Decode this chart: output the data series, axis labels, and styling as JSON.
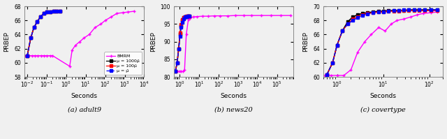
{
  "subplots": [
    {
      "label": "(a) adult9",
      "ylabel": "PRBEP",
      "xlabel": "Seconds",
      "xlim": [
        0.007,
        10000
      ],
      "ylim": [
        58,
        68
      ],
      "yticks": [
        58,
        60,
        62,
        64,
        66,
        68
      ],
      "legend_loc": "lower right",
      "series": [
        {
          "name": "BMRM",
          "color": "#ff00ff",
          "linestyle": "-",
          "marker": "+",
          "markersize": 3.5,
          "linewidth": 1.0,
          "x": [
            0.008,
            0.012,
            0.018,
            0.025,
            0.035,
            0.05,
            0.07,
            0.1,
            0.15,
            0.2,
            1.5,
            2.0,
            3.0,
            5.0,
            8.0,
            15.0,
            30.0,
            60.0,
            100.0,
            200.0,
            400.0,
            800.0,
            1500.0,
            3000.0
          ],
          "y": [
            61.0,
            61.0,
            61.0,
            61.0,
            61.0,
            61.0,
            61.0,
            61.0,
            61.0,
            61.0,
            59.5,
            61.8,
            62.5,
            63.0,
            63.5,
            64.0,
            65.0,
            65.5,
            66.0,
            66.5,
            67.0,
            67.1,
            67.2,
            67.3
          ]
        },
        {
          "name": "μ = 1000μ̂",
          "color": "#000000",
          "linestyle": "-",
          "marker": "s",
          "markersize": 2.5,
          "linewidth": 1.2,
          "x": [
            0.01,
            0.015,
            0.022,
            0.032,
            0.047,
            0.07,
            0.1,
            0.15,
            0.22,
            0.32,
            0.47
          ],
          "y": [
            61.0,
            63.5,
            65.0,
            65.8,
            66.5,
            67.0,
            67.2,
            67.2,
            67.3,
            67.3,
            67.3
          ]
        },
        {
          "name": "μ = 100μ̂",
          "color": "#ff0000",
          "linestyle": "-",
          "marker": "s",
          "markersize": 2.5,
          "linewidth": 1.0,
          "x": [
            0.01,
            0.015,
            0.022,
            0.032,
            0.047,
            0.07,
            0.1,
            0.15,
            0.22,
            0.32,
            0.47
          ],
          "y": [
            61.0,
            63.5,
            65.0,
            65.8,
            66.5,
            67.0,
            67.2,
            67.2,
            67.3,
            67.3,
            67.3
          ]
        },
        {
          "name": "μ = μ̂",
          "color": "#0000ff",
          "linestyle": "--",
          "marker": "s",
          "markersize": 2.5,
          "linewidth": 1.0,
          "x": [
            0.01,
            0.015,
            0.022,
            0.032,
            0.047,
            0.07,
            0.1,
            0.15,
            0.22,
            0.32,
            0.47
          ],
          "y": [
            61.0,
            63.5,
            65.0,
            65.8,
            66.5,
            67.0,
            67.2,
            67.2,
            67.3,
            67.3,
            67.3
          ]
        }
      ]
    },
    {
      "label": "(b) news20",
      "ylabel": "PRBEP",
      "xlabel": "Seconds",
      "xlim": [
        0.5,
        700000
      ],
      "ylim": [
        80,
        100
      ],
      "yticks": [
        80,
        85,
        90,
        95,
        100
      ],
      "legend_loc": null,
      "series": [
        {
          "name": "BMRM",
          "color": "#ff00ff",
          "linestyle": "-",
          "marker": "+",
          "markersize": 3.5,
          "linewidth": 1.0,
          "x": [
            0.6,
            0.8,
            1.0,
            1.2,
            1.5,
            1.8,
            2.2,
            2.8,
            3.5,
            5.0,
            8.0,
            15.0,
            30.0,
            60.0,
            120.0,
            300.0,
            700.0,
            2000.0,
            5000.0,
            15000.0,
            50000.0,
            150000.0,
            500000.0
          ],
          "y": [
            81.5,
            81.5,
            81.5,
            81.5,
            81.5,
            82.0,
            92.0,
            96.2,
            96.7,
            97.0,
            97.1,
            97.2,
            97.2,
            97.3,
            97.3,
            97.3,
            97.4,
            97.4,
            97.4,
            97.4,
            97.4,
            97.4,
            97.4
          ]
        },
        {
          "name": "μ = 1000μ̂",
          "color": "#000000",
          "linestyle": "-",
          "marker": "s",
          "markersize": 2.5,
          "linewidth": 1.2,
          "x": [
            0.6,
            0.75,
            0.9,
            1.05,
            1.2,
            1.4,
            1.6,
            1.9,
            2.2,
            2.6,
            3.1
          ],
          "y": [
            81.5,
            84.0,
            88.0,
            92.0,
            94.5,
            96.0,
            96.8,
            97.0,
            97.1,
            97.2,
            97.3
          ]
        },
        {
          "name": "μ = 100μ̂",
          "color": "#ff0000",
          "linestyle": "-",
          "marker": "s",
          "markersize": 2.5,
          "linewidth": 1.0,
          "x": [
            0.6,
            0.75,
            0.9,
            1.05,
            1.2,
            1.4,
            1.6,
            1.9,
            2.2,
            2.6,
            3.1
          ],
          "y": [
            81.5,
            84.0,
            88.0,
            92.5,
            94.8,
            96.2,
            96.9,
            97.1,
            97.2,
            97.3,
            97.3
          ]
        },
        {
          "name": "μ = μ̂",
          "color": "#0000ff",
          "linestyle": "--",
          "marker": "s",
          "markersize": 2.5,
          "linewidth": 1.0,
          "x": [
            0.6,
            0.75,
            0.9,
            1.05,
            1.2,
            1.4,
            1.6,
            1.9,
            2.2,
            2.6,
            3.1
          ],
          "y": [
            81.5,
            84.0,
            88.0,
            91.5,
            94.0,
            95.5,
            96.5,
            97.0,
            97.1,
            97.2,
            97.3
          ]
        }
      ]
    },
    {
      "label": "(c) covertype",
      "ylabel": "PRBEP",
      "xlabel": "Seconds",
      "xlim": [
        0.5,
        200
      ],
      "ylim": [
        60,
        70
      ],
      "yticks": [
        60,
        62,
        64,
        66,
        68,
        70
      ],
      "legend_loc": null,
      "series": [
        {
          "name": "BMRM",
          "color": "#ff00ff",
          "linestyle": "-",
          "marker": "+",
          "markersize": 3.5,
          "linewidth": 1.0,
          "x": [
            0.55,
            0.75,
            1.0,
            1.4,
            2.0,
            2.8,
            4.0,
            5.5,
            8.0,
            11.0,
            15.0,
            20.0,
            28.0,
            40.0,
            55.0,
            75.0,
            110.0,
            150.0
          ],
          "y": [
            60.2,
            60.2,
            60.2,
            60.2,
            61.0,
            63.5,
            65.0,
            66.0,
            67.0,
            66.5,
            67.5,
            68.0,
            68.2,
            68.5,
            68.8,
            69.0,
            69.1,
            69.2
          ]
        },
        {
          "name": "μ = 1000μ̂",
          "color": "#000000",
          "linestyle": "-",
          "marker": "s",
          "markersize": 2.5,
          "linewidth": 1.2,
          "x": [
            0.6,
            0.8,
            1.0,
            1.3,
            1.7,
            2.2,
            2.8,
            3.6,
            4.6,
            6.0,
            8.0,
            10.0,
            13.0,
            17.0,
            22.0,
            28.0,
            36.0,
            47.0,
            60.0,
            80.0,
            110.0,
            150.0
          ],
          "y": [
            60.3,
            62.0,
            64.5,
            66.5,
            67.8,
            68.5,
            68.8,
            69.0,
            69.1,
            69.2,
            69.3,
            69.3,
            69.4,
            69.4,
            69.4,
            69.4,
            69.5,
            69.5,
            69.5,
            69.5,
            69.5,
            69.5
          ]
        },
        {
          "name": "μ = 100μ̂",
          "color": "#ff0000",
          "linestyle": "-",
          "marker": "s",
          "markersize": 2.5,
          "linewidth": 1.0,
          "x": [
            0.6,
            0.8,
            1.0,
            1.3,
            1.7,
            2.2,
            2.8,
            3.6,
            4.6,
            6.0,
            8.0,
            10.0,
            13.0,
            17.0,
            22.0,
            28.0,
            36.0,
            47.0,
            60.0,
            80.0,
            110.0,
            150.0
          ],
          "y": [
            60.3,
            62.0,
            64.5,
            66.5,
            67.5,
            68.2,
            68.5,
            68.8,
            69.0,
            69.1,
            69.2,
            69.2,
            69.3,
            69.3,
            69.3,
            69.4,
            69.4,
            69.4,
            69.4,
            69.4,
            69.4,
            69.4
          ]
        },
        {
          "name": "μ = μ̂",
          "color": "#0000ff",
          "linestyle": "--",
          "marker": "s",
          "markersize": 2.5,
          "linewidth": 1.0,
          "x": [
            0.6,
            0.8,
            1.0,
            1.3,
            1.7,
            2.2,
            2.8,
            3.6,
            4.6,
            6.0,
            8.0,
            10.0,
            13.0,
            17.0,
            22.0,
            28.0,
            36.0,
            47.0,
            60.0,
            80.0,
            110.0,
            150.0
          ],
          "y": [
            60.3,
            62.0,
            64.5,
            66.5,
            67.5,
            68.0,
            68.4,
            68.7,
            68.9,
            69.1,
            69.2,
            69.2,
            69.3,
            69.4,
            69.4,
            69.5,
            69.5,
            69.5,
            69.5,
            69.5,
            69.5,
            69.5
          ]
        }
      ]
    }
  ],
  "legend_labels": [
    "BMRM",
    "μ = 1000μ̂",
    "μ = 100μ̂",
    "μ = μ̂"
  ],
  "legend_colors": [
    "#ff00ff",
    "#000000",
    "#ff0000",
    "#0000ff"
  ],
  "legend_styles": [
    "-",
    "-",
    "-",
    "--"
  ],
  "legend_markers": [
    "+",
    "s",
    "s",
    "s"
  ],
  "bg_color": "#f0f0f0"
}
